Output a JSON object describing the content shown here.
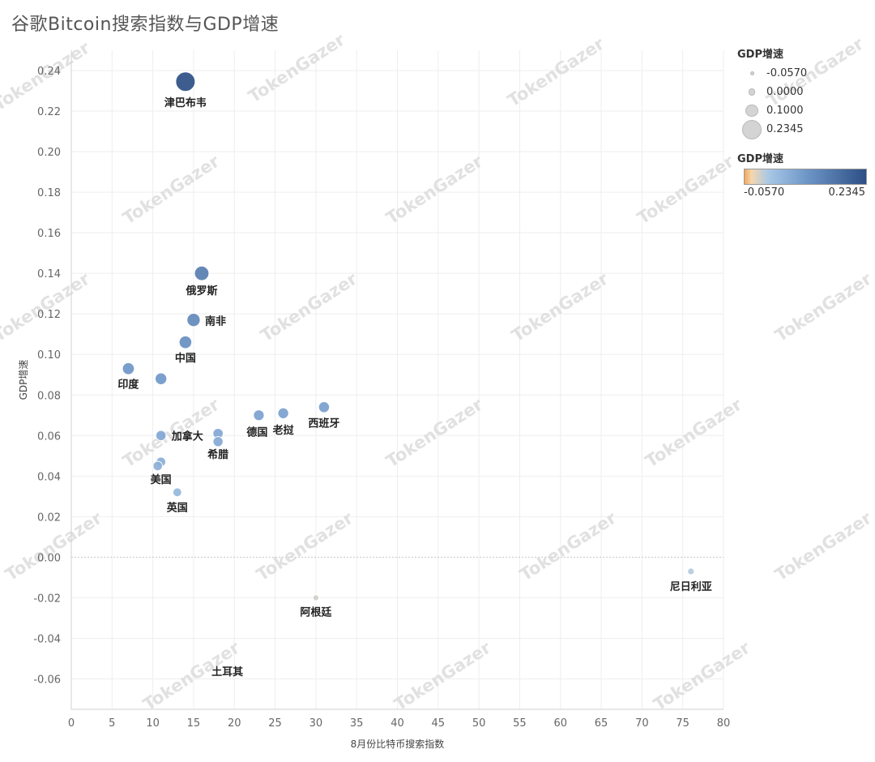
{
  "watermark": "TokenGazer",
  "chart_data": {
    "type": "scatter",
    "title": "谷歌Bitcoin搜索指数与GDP增速",
    "xlabel": "8月份比特币搜索指数",
    "ylabel": "GDP增速",
    "xlim": [
      0,
      80
    ],
    "ylim": [
      -0.075,
      0.25
    ],
    "x_ticks": [
      0,
      5,
      10,
      15,
      20,
      25,
      30,
      35,
      40,
      45,
      50,
      55,
      60,
      65,
      70,
      75,
      80
    ],
    "y_ticks": [
      -0.06,
      -0.04,
      -0.02,
      0.0,
      0.02,
      0.04,
      0.06,
      0.08,
      0.1,
      0.12,
      0.14,
      0.16,
      0.18,
      0.2,
      0.22,
      0.24
    ],
    "y_tick_labels": [
      "-0.06",
      "-0.04",
      "-0.02",
      "0.00",
      "0.02",
      "0.04",
      "0.06",
      "0.08",
      "0.10",
      "0.12",
      "0.14",
      "0.16",
      "0.18",
      "0.20",
      "0.22",
      "0.24"
    ],
    "grid": true,
    "size_legend": {
      "title": "GDP增速",
      "values": [
        -0.057,
        0.0,
        0.1,
        0.2345
      ],
      "labels": [
        "-0.0570",
        "0.0000",
        "0.1000",
        "0.2345"
      ]
    },
    "color_legend": {
      "title": "GDP增速",
      "min_label": "-0.0570",
      "max_label": "0.2345",
      "min": -0.057,
      "max": 0.2345,
      "colors": [
        "#f2a85a",
        "#f5d7b0",
        "#a9c8e6",
        "#6f97c8",
        "#2d4f86"
      ]
    },
    "legend_position": "top-right",
    "points": [
      {
        "label": "津巴布韦",
        "x": 14,
        "y": 0.2345
      },
      {
        "label": "俄罗斯",
        "x": 16,
        "y": 0.14
      },
      {
        "label": "南非",
        "x": 15,
        "y": 0.117
      },
      {
        "label": "中国",
        "x": 14,
        "y": 0.106
      },
      {
        "label": "印度",
        "x": 7,
        "y": 0.093
      },
      {
        "label": "",
        "x": 11,
        "y": 0.088
      },
      {
        "label": "西班牙",
        "x": 31,
        "y": 0.074
      },
      {
        "label": "老挝",
        "x": 26,
        "y": 0.071
      },
      {
        "label": "德国",
        "x": 23,
        "y": 0.07
      },
      {
        "label": "加拿大",
        "x": 11,
        "y": 0.06
      },
      {
        "label": "希腊",
        "x": 18,
        "y": 0.061
      },
      {
        "label": "",
        "x": 18,
        "y": 0.057
      },
      {
        "label": "美国",
        "x": 11,
        "y": 0.047
      },
      {
        "label": "",
        "x": 10.6,
        "y": 0.045
      },
      {
        "label": "英国",
        "x": 13,
        "y": 0.032
      },
      {
        "label": "尼日利亚",
        "x": 76,
        "y": -0.007
      },
      {
        "label": "阿根廷",
        "x": 30,
        "y": -0.02
      },
      {
        "label": "土耳其",
        "x": 18,
        "y": -0.057
      }
    ]
  }
}
